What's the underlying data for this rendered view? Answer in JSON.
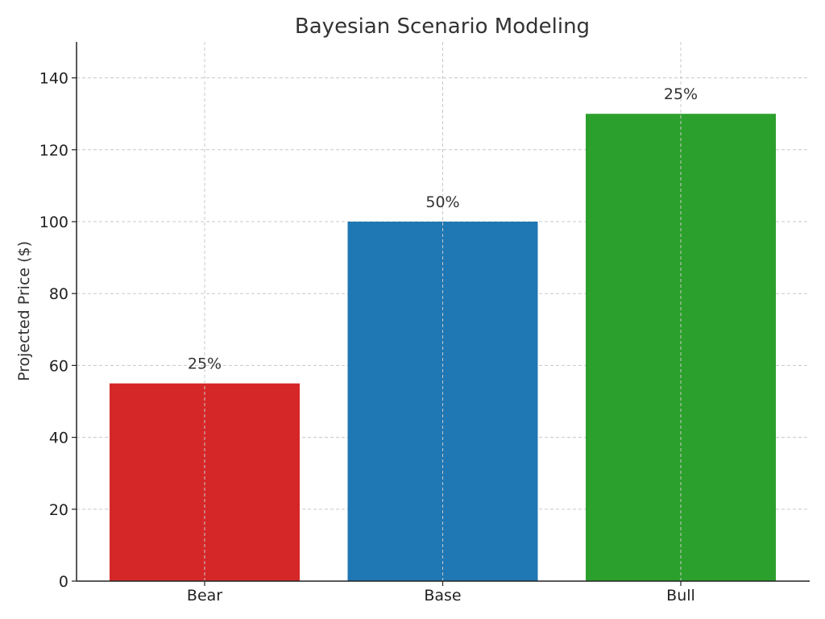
{
  "chart_data": {
    "type": "bar",
    "title": "Bayesian Scenario Modeling",
    "xlabel": "",
    "ylabel": "Projected Price ($)",
    "categories": [
      "Bear",
      "Base",
      "Bull"
    ],
    "values": [
      55,
      100,
      130
    ],
    "data_labels": [
      "25%",
      "50%",
      "25%"
    ],
    "colors": [
      "#d62728",
      "#1f77b4",
      "#2ca02c"
    ],
    "ylim": [
      0,
      150
    ],
    "yticks": [
      0,
      20,
      40,
      60,
      80,
      100,
      120,
      140
    ],
    "grid": true
  }
}
